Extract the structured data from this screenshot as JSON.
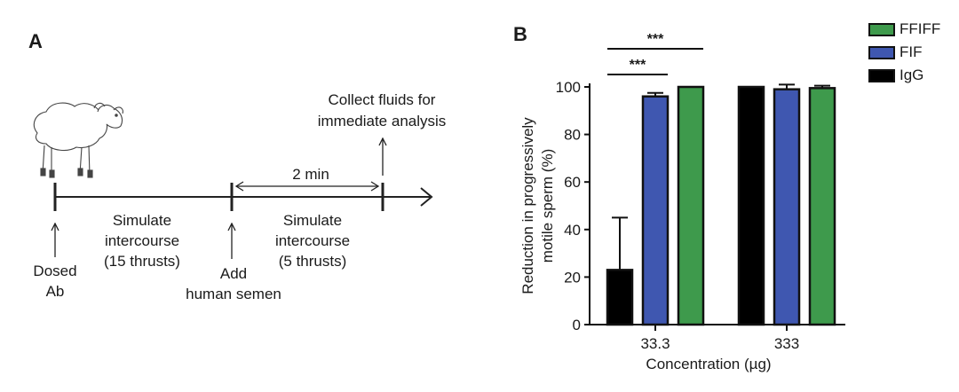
{
  "panel_a": {
    "label": "A",
    "collect_text_1": "Collect fluids for",
    "collect_text_2": "immediate analysis",
    "interval": "2 min",
    "step1_1": "Simulate",
    "step1_2": "intercourse",
    "step1_3": "(15 thrusts)",
    "step2_1": "Simulate",
    "step2_2": "intercourse",
    "step2_3": "(5 thrusts)",
    "dosed_1": "Dosed",
    "dosed_2": "Ab",
    "add_1": "Add",
    "add_2": "human semen",
    "animal": "sheep-icon"
  },
  "chart_data": {
    "panel_label": "B",
    "type": "bar",
    "categories": [
      "33.3",
      "333"
    ],
    "series": [
      {
        "name": "IgG",
        "color": "#000000",
        "values": [
          23,
          100
        ],
        "errors": [
          22,
          0
        ]
      },
      {
        "name": "FIF",
        "color": "#3f57b0",
        "values": [
          96,
          99
        ],
        "errors": [
          1.5,
          2
        ]
      },
      {
        "name": "FFIFF",
        "color": "#3e9a4c",
        "values": [
          100,
          99.5
        ],
        "errors": [
          0,
          1
        ]
      }
    ],
    "xlabel": "Concentration (µg)",
    "ylabel_line1": "Reduction in progressively",
    "ylabel_line2": "motile sperm (%)",
    "ylim": [
      0,
      100
    ],
    "yticks": [
      "0",
      "20",
      "40",
      "60",
      "80",
      "100"
    ],
    "significance": [
      {
        "from_series": "IgG",
        "to_series": "FIF",
        "category": "33.3",
        "label": "***"
      },
      {
        "from_series": "IgG",
        "to_series": "FFIFF",
        "category": "33.3",
        "label": "***"
      }
    ],
    "legend_order": [
      "FFIFF",
      "FIF",
      "IgG"
    ],
    "legend_position": "top-right"
  }
}
